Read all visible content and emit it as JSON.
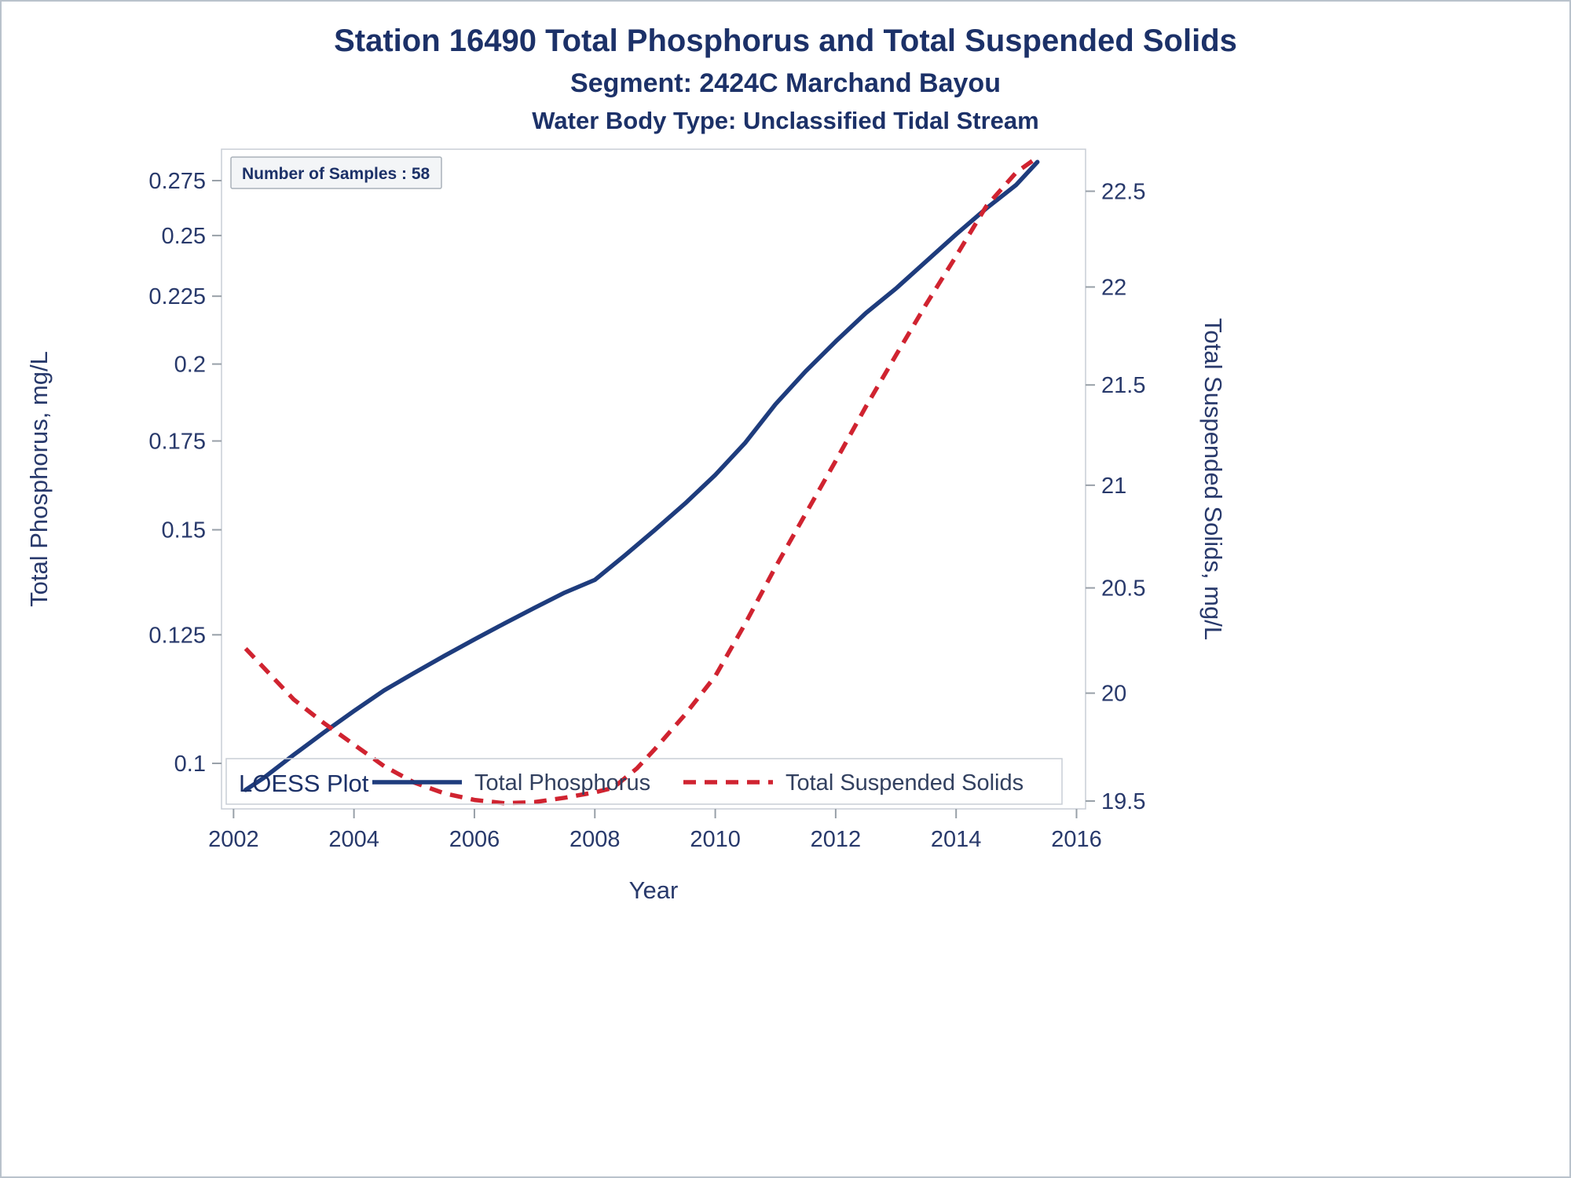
{
  "titles": {
    "line1": "Station 16490  Total Phosphorus and Total Suspended Solids",
    "line2": "Segment: 2424C  Marchand Bayou",
    "line3": "Water Body Type: Unclassified Tidal Stream"
  },
  "annotations": {
    "samples": "Number of Samples : 58",
    "loess_label": "LOESS Plot"
  },
  "legend": {
    "items": [
      {
        "label": "Total Phosphorus",
        "color": "#1e3c7d",
        "style": "solid"
      },
      {
        "label": "Total Suspended Solids",
        "color": "#d02330",
        "style": "dashed"
      }
    ]
  },
  "colors": {
    "title_text": "#1c3168",
    "axis_text": "#28396b",
    "phosphorus_line": "#1e3c7d",
    "solids_line": "#d02330",
    "frame": "#c9ced6"
  },
  "chart_data": {
    "type": "line",
    "title": "Station 16490  Total Phosphorus and Total Suspended Solids",
    "subtitle": "Segment: 2424C  Marchand Bayou — Water Body Type: Unclassified Tidal Stream",
    "legend_position": "bottom",
    "grid": false,
    "x_axis": {
      "label": "Year",
      "range": [
        2001.8,
        2016.15
      ],
      "ticks": [
        {
          "value": 2002,
          "label": "2002"
        },
        {
          "value": 2004,
          "label": "2004"
        },
        {
          "value": 2006,
          "label": "2006"
        },
        {
          "value": 2008,
          "label": "2008"
        },
        {
          "value": 2010,
          "label": "2010"
        },
        {
          "value": 2012,
          "label": "2012"
        },
        {
          "value": 2014,
          "label": "2014"
        },
        {
          "value": 2016,
          "label": "2016"
        }
      ]
    },
    "y_left": {
      "label": "Total Phosphorus, mg/L",
      "scale": "log",
      "range": [
        0.0924,
        0.2904
      ],
      "ticks": [
        {
          "value": 0.1,
          "label": "0.1"
        },
        {
          "value": 0.125,
          "label": "0.125"
        },
        {
          "value": 0.15,
          "label": "0.15"
        },
        {
          "value": 0.175,
          "label": "0.175"
        },
        {
          "value": 0.2,
          "label": "0.2"
        },
        {
          "value": 0.225,
          "label": "0.225"
        },
        {
          "value": 0.25,
          "label": "0.25"
        },
        {
          "value": 0.275,
          "label": "0.275"
        }
      ]
    },
    "y_right": {
      "label": "Total Suspended Solids, mg/L",
      "scale": "log",
      "range": [
        19.464,
        22.723
      ],
      "ticks": [
        {
          "value": 19.5,
          "label": "19.5"
        },
        {
          "value": 20,
          "label": "20"
        },
        {
          "value": 20.5,
          "label": "20.5"
        },
        {
          "value": 21,
          "label": "21"
        },
        {
          "value": 21.5,
          "label": "21.5"
        },
        {
          "value": 22,
          "label": "22"
        },
        {
          "value": 22.5,
          "label": "22.5"
        }
      ]
    },
    "series": [
      {
        "name": "Total Phosphorus",
        "axis": "left",
        "color": "#1e3c7d",
        "style": "solid",
        "points": [
          [
            2002.2,
            0.0955
          ],
          [
            2002.5,
            0.0975
          ],
          [
            2003,
            0.1015
          ],
          [
            2003.5,
            0.1055
          ],
          [
            2004,
            0.1095
          ],
          [
            2004.5,
            0.1135
          ],
          [
            2005,
            0.117
          ],
          [
            2005.5,
            0.1205
          ],
          [
            2006,
            0.124
          ],
          [
            2006.5,
            0.1275
          ],
          [
            2007,
            0.131
          ],
          [
            2007.5,
            0.1345
          ],
          [
            2008,
            0.1375
          ],
          [
            2008.5,
            0.1435
          ],
          [
            2009,
            0.15
          ],
          [
            2009.5,
            0.157
          ],
          [
            2010,
            0.165
          ],
          [
            2010.5,
            0.1745
          ],
          [
            2011,
            0.1865
          ],
          [
            2011.5,
            0.1975
          ],
          [
            2012,
            0.208
          ],
          [
            2012.5,
            0.2185
          ],
          [
            2013,
            0.228
          ],
          [
            2013.5,
            0.239
          ],
          [
            2014,
            0.2505
          ],
          [
            2014.5,
            0.262
          ],
          [
            2015,
            0.273
          ],
          [
            2015.35,
            0.284
          ]
        ]
      },
      {
        "name": "Total Suspended Solids",
        "axis": "right",
        "color": "#d02330",
        "style": "dashed",
        "points": [
          [
            2002.2,
            20.21
          ],
          [
            2002.5,
            20.12
          ],
          [
            2003,
            19.97
          ],
          [
            2003.5,
            19.86
          ],
          [
            2004,
            19.76
          ],
          [
            2004.5,
            19.66
          ],
          [
            2005,
            19.585
          ],
          [
            2005.5,
            19.535
          ],
          [
            2006,
            19.505
          ],
          [
            2006.5,
            19.49
          ],
          [
            2007,
            19.495
          ],
          [
            2007.5,
            19.515
          ],
          [
            2008,
            19.54
          ],
          [
            2008.3,
            19.56
          ],
          [
            2008.7,
            19.65
          ],
          [
            2009,
            19.74
          ],
          [
            2009.5,
            19.9
          ],
          [
            2010,
            20.08
          ],
          [
            2010.5,
            20.33
          ],
          [
            2011,
            20.6
          ],
          [
            2011.5,
            20.86
          ],
          [
            2012,
            21.12
          ],
          [
            2012.5,
            21.39
          ],
          [
            2013,
            21.65
          ],
          [
            2013.5,
            21.91
          ],
          [
            2014,
            22.16
          ],
          [
            2014.5,
            22.42
          ],
          [
            2015,
            22.6
          ],
          [
            2015.35,
            22.68
          ]
        ]
      }
    ]
  }
}
